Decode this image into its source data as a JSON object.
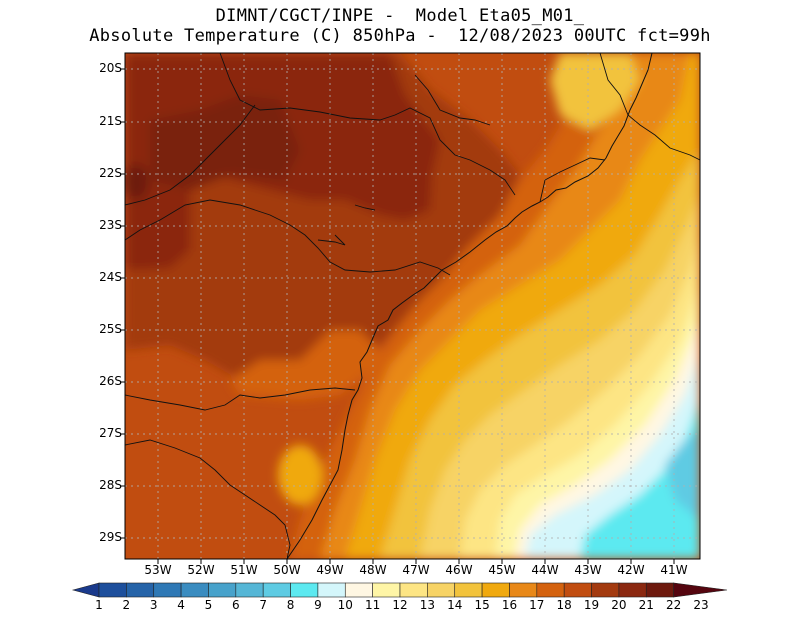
{
  "title": {
    "line1": "DIMNT/CGCT/INPE -  Model Eta05_M01_",
    "line2": "Absolute Temperature (C) 850hPa -  12/08/2023 00UTC fct=99h"
  },
  "axes": {
    "lat_labels": [
      "20S",
      "21S",
      "22S",
      "23S",
      "24S",
      "25S",
      "26S",
      "27S",
      "28S",
      "29S"
    ],
    "lon_labels": [
      "53W",
      "52W",
      "51W",
      "50W",
      "49W",
      "48W",
      "47W",
      "46W",
      "45W",
      "44W",
      "43W",
      "42W",
      "41W"
    ]
  },
  "colorbar": {
    "labels": [
      "1",
      "2",
      "3",
      "4",
      "5",
      "6",
      "7",
      "8",
      "9",
      "10",
      "11",
      "12",
      "13",
      "14",
      "15",
      "16",
      "17",
      "18",
      "19",
      "20",
      "21",
      "22",
      "23"
    ],
    "colors": [
      "#1a3a8c",
      "#1d4f9c",
      "#2563a8",
      "#2e78b5",
      "#3a8cc0",
      "#47a2cb",
      "#55b6d6",
      "#5ecbe3",
      "#5ce9f0",
      "#d4f6fb",
      "#fff7e3",
      "#fef5a6",
      "#fde584",
      "#f7d365",
      "#f2c33c",
      "#f0a90f",
      "#e88818",
      "#d4620f",
      "#c14d10",
      "#a33a0f",
      "#8b2810",
      "#6e1a0e",
      "#55050f"
    ]
  },
  "chart_data": {
    "type": "heatmap",
    "title": "Absolute Temperature (C) 850hPa",
    "model": "Eta05_M01_",
    "run": "12/08/2023 00UTC",
    "forecast": "fct=99h",
    "units": "C",
    "lat_range": [
      -29.4,
      -19.8
    ],
    "lon_range": [
      -53.6,
      -40.5
    ],
    "levels": [
      1,
      2,
      3,
      4,
      5,
      6,
      7,
      8,
      9,
      10,
      11,
      12,
      13,
      14,
      15,
      16,
      17,
      18,
      19,
      20,
      21,
      22,
      23
    ],
    "field_summary": [
      {
        "region": "northwest interior",
        "value_range": [
          21,
          22
        ]
      },
      {
        "region": "west interior / south",
        "value_range": [
          18,
          20
        ]
      },
      {
        "region": "coastal strip",
        "value_range": [
          15,
          17
        ]
      },
      {
        "region": "offshore central",
        "value_range": [
          12,
          14
        ]
      },
      {
        "region": "offshore southeast",
        "value_range": [
          9,
          11
        ]
      }
    ]
  }
}
